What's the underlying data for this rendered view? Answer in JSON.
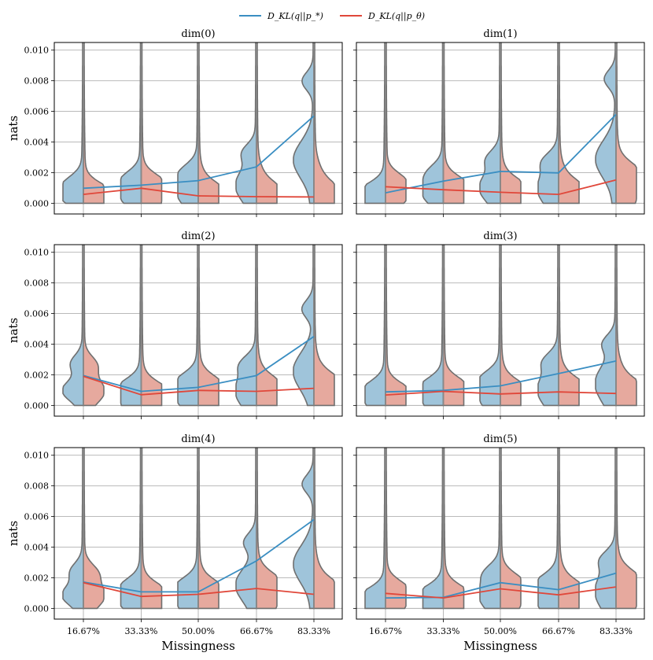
{
  "colors": {
    "series_p_star": "#3a8ec2",
    "series_p_theta": "#e0473a",
    "left_fill": "#9fc4da",
    "right_fill": "#e6a99e"
  },
  "chart_data": {
    "type": "violin-with-lines",
    "legend": [
      "D_KL(q||p_*)",
      "D_KL(q||p_θ)"
    ],
    "legend_position": "top-center",
    "categories": [
      "16.67%",
      "33.33%",
      "50.00%",
      "66.67%",
      "83.33%"
    ],
    "xlabel": "Missingness",
    "ylabel": "nats",
    "ylim": [
      -0.0007,
      0.0105
    ],
    "yticks": [
      0.0,
      0.002,
      0.004,
      0.006,
      0.008,
      0.01
    ],
    "ytick_labels": [
      "0.000",
      "0.002",
      "0.004",
      "0.006",
      "0.008",
      "0.010"
    ],
    "grid": true,
    "panels": [
      {
        "title": "dim(0)",
        "series": [
          {
            "name": "D_KL(q||p_*)",
            "values": [
              0.00098,
              0.00118,
              0.00148,
              0.00238,
              0.0057
            ]
          },
          {
            "name": "D_KL(q||p_θ)",
            "values": [
              0.00058,
              0.00098,
              0.00048,
              0.00043,
              0.00041
            ]
          }
        ]
      },
      {
        "title": "dim(1)",
        "series": [
          {
            "name": "D_KL(q||p_*)",
            "values": [
              0.00068,
              0.00145,
              0.00208,
              0.00198,
              0.0058
            ]
          },
          {
            "name": "D_KL(q||p_θ)",
            "values": [
              0.00108,
              0.00088,
              0.00072,
              0.00058,
              0.00152
            ]
          }
        ]
      },
      {
        "title": "dim(2)",
        "series": [
          {
            "name": "D_KL(q||p_*)",
            "values": [
              0.00195,
              0.00092,
              0.00118,
              0.00195,
              0.0045
            ]
          },
          {
            "name": "D_KL(q||p_θ)",
            "values": [
              0.0019,
              0.0007,
              0.00098,
              0.00092,
              0.00112
            ]
          }
        ]
      },
      {
        "title": "dim(3)",
        "series": [
          {
            "name": "D_KL(q||p_*)",
            "values": [
              0.00088,
              0.00098,
              0.00128,
              0.00208,
              0.0029
            ]
          },
          {
            "name": "D_KL(q||p_θ)",
            "values": [
              0.00068,
              0.00092,
              0.00075,
              0.00088,
              0.00078
            ]
          }
        ]
      },
      {
        "title": "dim(4)",
        "series": [
          {
            "name": "D_KL(q||p_*)",
            "values": [
              0.00172,
              0.00108,
              0.00108,
              0.0031,
              0.0058
            ]
          },
          {
            "name": "D_KL(q||p_θ)",
            "values": [
              0.00168,
              0.00078,
              0.00092,
              0.0013,
              0.00092
            ]
          }
        ]
      },
      {
        "title": "dim(5)",
        "series": [
          {
            "name": "D_KL(q||p_*)",
            "values": [
              0.00068,
              0.00072,
              0.00168,
              0.00122,
              0.0023
            ]
          },
          {
            "name": "D_KL(q||p_θ)",
            "values": [
              0.00098,
              0.00068,
              0.00128,
              0.00088,
              0.0014
            ]
          }
        ]
      }
    ]
  }
}
